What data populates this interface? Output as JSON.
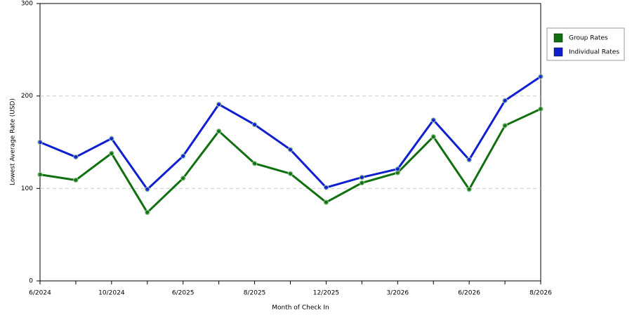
{
  "chart_data": {
    "type": "line",
    "x_label": "Month of Check In",
    "y_label": "Lowest Average Rate (USD)",
    "categories": [
      "6/2024",
      null,
      "10/2024",
      null,
      "6/2025",
      null,
      "8/2025",
      null,
      "12/2025",
      null,
      "3/2026",
      null,
      "6/2026",
      null,
      "8/2026"
    ],
    "series": [
      {
        "name": "Group Rates",
        "color": "#107010",
        "values": [
          115,
          109,
          138,
          74,
          111,
          162,
          127,
          116,
          85,
          106,
          117,
          156,
          99,
          168,
          186
        ]
      },
      {
        "name": "Individual Rates",
        "color": "#1020d0",
        "values": [
          150,
          134,
          154,
          99,
          135,
          191,
          169,
          142,
          101,
          112,
          121,
          174,
          131,
          195,
          221
        ]
      }
    ],
    "ylim": [
      0,
      300
    ],
    "yticks": [
      0,
      100,
      200,
      300
    ],
    "grid": true,
    "legend": "top-right"
  }
}
